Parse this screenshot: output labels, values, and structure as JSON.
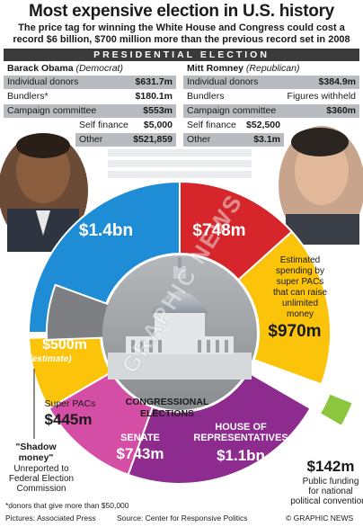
{
  "header": {
    "title": "Most expensive election in U.S. history",
    "subtitle": "The price tag for winning the White House and Congress could cost a record $6 billion, $700 million more than the previous record set in 2008",
    "banner": "PRESIDENTIAL ELECTION"
  },
  "obama": {
    "name": "Barack Obama",
    "party": "(Democrat)",
    "rows": [
      {
        "label": "Individual donors",
        "value": "$631.7m"
      },
      {
        "label": "Bundlers*",
        "value": "$180.1m"
      },
      {
        "label": "Campaign committee",
        "value": "$553m"
      },
      {
        "label": "Self finance",
        "value": "$5,000"
      },
      {
        "label": "Other",
        "value": "$521,859"
      }
    ]
  },
  "romney": {
    "name": "Mitt Romney",
    "party": "(Republican)",
    "rows": [
      {
        "label": "Individual donors",
        "value": "$384.9m"
      },
      {
        "label": "Bundlers",
        "value": "Figures withheld"
      },
      {
        "label": "Campaign committee",
        "value": "$360m"
      },
      {
        "label": "Self finance",
        "value": "$52,500"
      },
      {
        "label": "Other",
        "value": "$3.1m"
      }
    ]
  },
  "chart_data": {
    "type": "pie",
    "unit": "US$",
    "slices": [
      {
        "label": "$1.4bn",
        "value": 1400,
        "color": "#1f8dd6"
      },
      {
        "label": "$748m",
        "value": 748,
        "color": "#d7262b"
      },
      {
        "label": "$970m",
        "value": 970,
        "color": "#fcc30b",
        "note": "Estimated spending by super PACs that can raise unlimited money"
      },
      {
        "label": "$142m",
        "value": 142,
        "color": "#8cc63f",
        "note": "Public funding for national political conventions"
      },
      {
        "label": "$1.1bn",
        "value": 1100,
        "color": "#8e2b8e",
        "name": "HOUSE OF REPRESENTATIVES"
      },
      {
        "label": "$743m",
        "value": 743,
        "color": "#d44ea6",
        "name": "SENATE"
      },
      {
        "label": "$445m",
        "value": 445,
        "color": "#fcc30b",
        "name": "Super PACs"
      },
      {
        "label": "$500m",
        "value": 500,
        "color": "#7d7f82",
        "note": "(estimate)"
      }
    ],
    "center_label": "CONGRESSIONAL ELECTIONS"
  },
  "colors": {
    "obama_blue": "#1f8dd6",
    "romney_red": "#d7262b",
    "superpac_yellow": "#fcc30b",
    "house_purple": "#8e2b8e",
    "senate_pink": "#d44ea6",
    "shadow_grey": "#7d7f82",
    "convention_green": "#8cc63f"
  },
  "labels": {
    "superpac_note": [
      "Estimated",
      "spending by",
      "super PACs",
      "that can raise",
      "unlimited",
      "money"
    ],
    "estimate": "(estimate)",
    "convention_note": [
      "Public funding",
      "for national",
      "political conventions"
    ],
    "shadow_title": "\"Shadow money\"",
    "shadow_note": [
      "Unreported to",
      "Federal Election",
      "Commission"
    ],
    "super_pacs": "Super PACs",
    "senate": "SENATE",
    "house": [
      "HOUSE OF",
      "REPRESENTATIVES"
    ],
    "center": [
      "CONGRESSIONAL",
      "ELECTIONS"
    ]
  },
  "footer": {
    "bundler_note": "*donors that give more than $50,000",
    "pictures": "Pictures: Associated Press",
    "source": "Source: Center for Responsive Politics",
    "credit": "© GRAPHIC NEWS"
  }
}
